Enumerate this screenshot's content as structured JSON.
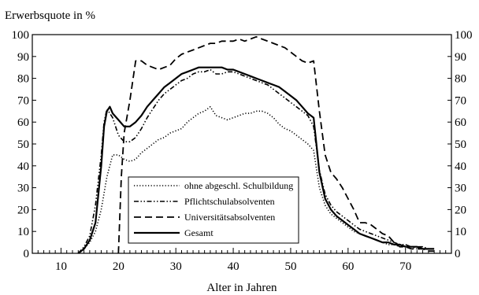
{
  "chart_data": {
    "type": "line",
    "title": "Erwerbsquote in %",
    "xlabel": "Alter in Jahren",
    "ylabel": "Erwerbsquote in %",
    "xlim": [
      5,
      78
    ],
    "ylim": [
      0,
      100
    ],
    "x_ticks": [
      10,
      20,
      30,
      40,
      50,
      60,
      70
    ],
    "y_ticks": [
      0,
      10,
      20,
      30,
      40,
      50,
      60,
      70,
      80,
      90,
      100
    ],
    "x_minor_step": 1,
    "y_axes": [
      "left",
      "right"
    ],
    "grid": false,
    "legend_position": "center-left",
    "series": [
      {
        "name": "ohne abgeschl. Schulbildung",
        "dash": "dotted",
        "points": [
          [
            13,
            0
          ],
          [
            14,
            2
          ],
          [
            15,
            5
          ],
          [
            16,
            10
          ],
          [
            17,
            20
          ],
          [
            18,
            35
          ],
          [
            19,
            45
          ],
          [
            20,
            45
          ],
          [
            21,
            43
          ],
          [
            22,
            42
          ],
          [
            23,
            43
          ],
          [
            24,
            46
          ],
          [
            25,
            48
          ],
          [
            26,
            50
          ],
          [
            27,
            52
          ],
          [
            28,
            53
          ],
          [
            29,
            55
          ],
          [
            30,
            56
          ],
          [
            31,
            57
          ],
          [
            32,
            60
          ],
          [
            33,
            62
          ],
          [
            34,
            64
          ],
          [
            35,
            65
          ],
          [
            36,
            67
          ],
          [
            37,
            63
          ],
          [
            38,
            62
          ],
          [
            39,
            61
          ],
          [
            40,
            62
          ],
          [
            41,
            63
          ],
          [
            42,
            64
          ],
          [
            43,
            64
          ],
          [
            44,
            65
          ],
          [
            45,
            65
          ],
          [
            46,
            64
          ],
          [
            47,
            62
          ],
          [
            48,
            59
          ],
          [
            49,
            57
          ],
          [
            50,
            56
          ],
          [
            51,
            54
          ],
          [
            52,
            52
          ],
          [
            53,
            50
          ],
          [
            54,
            47
          ],
          [
            55,
            30
          ],
          [
            56,
            22
          ],
          [
            57,
            18
          ],
          [
            58,
            16
          ],
          [
            59,
            14
          ],
          [
            60,
            12
          ],
          [
            61,
            10
          ],
          [
            62,
            9
          ],
          [
            63,
            8
          ],
          [
            64,
            7
          ],
          [
            65,
            6
          ],
          [
            66,
            5
          ],
          [
            67,
            4
          ],
          [
            68,
            4
          ],
          [
            69,
            3
          ],
          [
            70,
            3
          ],
          [
            71,
            3
          ],
          [
            72,
            2
          ],
          [
            73,
            2
          ],
          [
            74,
            2
          ],
          [
            75,
            2
          ]
        ]
      },
      {
        "name": "Pflichtschulabsolventen",
        "dash": "dash-dot-dot",
        "points": [
          [
            13,
            0
          ],
          [
            14,
            3
          ],
          [
            15,
            8
          ],
          [
            16,
            22
          ],
          [
            17,
            45
          ],
          [
            17.5,
            60
          ],
          [
            18,
            66
          ],
          [
            19,
            62
          ],
          [
            20,
            54
          ],
          [
            21,
            51
          ],
          [
            22,
            51
          ],
          [
            23,
            53
          ],
          [
            24,
            57
          ],
          [
            25,
            62
          ],
          [
            26,
            66
          ],
          [
            27,
            70
          ],
          [
            28,
            73
          ],
          [
            29,
            75
          ],
          [
            30,
            77
          ],
          [
            31,
            79
          ],
          [
            32,
            80
          ],
          [
            33,
            82
          ],
          [
            34,
            83
          ],
          [
            35,
            83
          ],
          [
            36,
            84
          ],
          [
            37,
            82
          ],
          [
            38,
            82
          ],
          [
            39,
            83
          ],
          [
            40,
            83
          ],
          [
            41,
            82
          ],
          [
            42,
            81
          ],
          [
            43,
            80
          ],
          [
            44,
            79
          ],
          [
            45,
            78
          ],
          [
            46,
            77
          ],
          [
            47,
            75
          ],
          [
            48,
            73
          ],
          [
            49,
            71
          ],
          [
            50,
            69
          ],
          [
            51,
            67
          ],
          [
            52,
            65
          ],
          [
            53,
            63
          ],
          [
            54,
            58
          ],
          [
            55,
            38
          ],
          [
            56,
            27
          ],
          [
            57,
            22
          ],
          [
            58,
            19
          ],
          [
            59,
            17
          ],
          [
            60,
            15
          ],
          [
            61,
            13
          ],
          [
            62,
            11
          ],
          [
            63,
            10
          ],
          [
            64,
            9
          ],
          [
            65,
            8
          ],
          [
            66,
            7
          ],
          [
            67,
            6
          ],
          [
            68,
            5
          ],
          [
            69,
            4
          ],
          [
            70,
            4
          ],
          [
            71,
            3
          ],
          [
            72,
            3
          ],
          [
            73,
            3
          ],
          [
            74,
            2
          ],
          [
            75,
            2
          ]
        ]
      },
      {
        "name": "Universitätsabsolventen",
        "dash": "dashed",
        "points": [
          [
            20,
            0
          ],
          [
            20.5,
            35
          ],
          [
            21,
            55
          ],
          [
            22,
            70
          ],
          [
            23,
            88
          ],
          [
            24,
            88
          ],
          [
            25,
            86
          ],
          [
            26,
            85
          ],
          [
            27,
            84
          ],
          [
            28,
            85
          ],
          [
            29,
            86
          ],
          [
            30,
            89
          ],
          [
            31,
            91
          ],
          [
            32,
            92
          ],
          [
            33,
            93
          ],
          [
            34,
            94
          ],
          [
            35,
            95
          ],
          [
            36,
            96
          ],
          [
            37,
            96
          ],
          [
            38,
            97
          ],
          [
            39,
            97
          ],
          [
            40,
            97
          ],
          [
            41,
            98
          ],
          [
            42,
            97
          ],
          [
            43,
            98
          ],
          [
            44,
            99
          ],
          [
            45,
            98
          ],
          [
            46,
            97
          ],
          [
            47,
            96
          ],
          [
            48,
            95
          ],
          [
            49,
            94
          ],
          [
            50,
            92
          ],
          [
            51,
            90
          ],
          [
            52,
            88
          ],
          [
            53,
            87
          ],
          [
            54,
            88
          ],
          [
            55,
            65
          ],
          [
            56,
            45
          ],
          [
            57,
            37
          ],
          [
            58,
            34
          ],
          [
            59,
            30
          ],
          [
            60,
            25
          ],
          [
            61,
            20
          ],
          [
            62,
            14
          ],
          [
            63,
            14
          ],
          [
            64,
            13
          ],
          [
            65,
            11
          ],
          [
            66,
            9
          ],
          [
            67,
            8
          ],
          [
            68,
            5
          ],
          [
            69,
            3
          ],
          [
            70,
            3
          ],
          [
            71,
            2
          ],
          [
            72,
            2
          ],
          [
            73,
            2
          ],
          [
            74,
            1
          ],
          [
            75,
            1
          ]
        ]
      },
      {
        "name": "Gesamt",
        "dash": "solid",
        "points": [
          [
            13,
            0
          ],
          [
            14,
            2
          ],
          [
            15,
            6
          ],
          [
            16,
            14
          ],
          [
            17,
            40
          ],
          [
            17.5,
            58
          ],
          [
            18,
            65
          ],
          [
            18.5,
            67
          ],
          [
            19,
            64
          ],
          [
            20,
            61
          ],
          [
            21,
            58
          ],
          [
            22,
            58
          ],
          [
            23,
            60
          ],
          [
            24,
            63
          ],
          [
            25,
            67
          ],
          [
            26,
            70
          ],
          [
            27,
            73
          ],
          [
            28,
            76
          ],
          [
            29,
            78
          ],
          [
            30,
            80
          ],
          [
            31,
            82
          ],
          [
            32,
            83
          ],
          [
            33,
            84
          ],
          [
            34,
            85
          ],
          [
            35,
            85
          ],
          [
            36,
            85
          ],
          [
            37,
            85
          ],
          [
            38,
            85
          ],
          [
            39,
            84
          ],
          [
            40,
            84
          ],
          [
            41,
            83
          ],
          [
            42,
            82
          ],
          [
            43,
            81
          ],
          [
            44,
            80
          ],
          [
            45,
            79
          ],
          [
            46,
            78
          ],
          [
            47,
            77
          ],
          [
            48,
            76
          ],
          [
            49,
            74
          ],
          [
            50,
            72
          ],
          [
            51,
            70
          ],
          [
            52,
            67
          ],
          [
            53,
            64
          ],
          [
            54,
            62
          ],
          [
            55,
            37
          ],
          [
            56,
            25
          ],
          [
            57,
            20
          ],
          [
            58,
            17
          ],
          [
            59,
            15
          ],
          [
            60,
            13
          ],
          [
            61,
            11
          ],
          [
            62,
            9
          ],
          [
            63,
            8
          ],
          [
            64,
            7
          ],
          [
            65,
            6
          ],
          [
            66,
            5
          ],
          [
            67,
            5
          ],
          [
            68,
            4
          ],
          [
            69,
            4
          ],
          [
            70,
            3
          ],
          [
            71,
            3
          ],
          [
            72,
            3
          ],
          [
            73,
            2
          ],
          [
            74,
            2
          ],
          [
            75,
            2
          ]
        ]
      }
    ]
  }
}
